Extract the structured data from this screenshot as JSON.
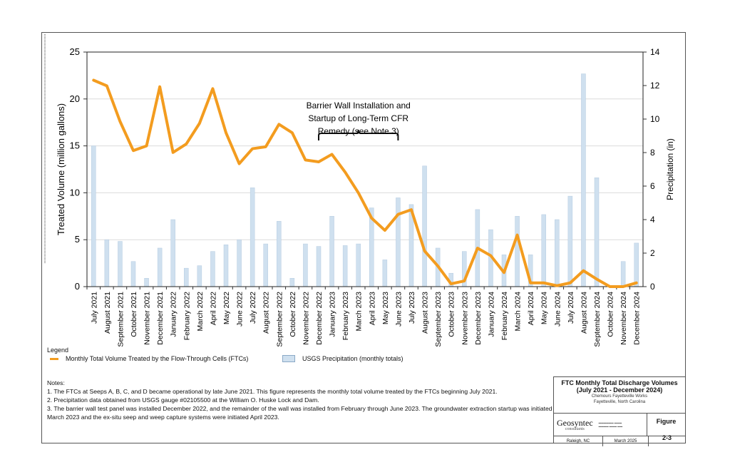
{
  "chart_data": {
    "type": "bar+line",
    "categories": [
      "July 2021",
      "August 2021",
      "September 2021",
      "October 2021",
      "November 2021",
      "December 2021",
      "January 2022",
      "February 2022",
      "March 2022",
      "April 2022",
      "May 2022",
      "June 2022",
      "July 2022",
      "August 2022",
      "September 2022",
      "October 2022",
      "November 2022",
      "December 2022",
      "January 2023",
      "February 2023",
      "March 2023",
      "April 2023",
      "May 2023",
      "June 2023",
      "July 2023",
      "August 2023",
      "September 2023",
      "October 2023",
      "November 2023",
      "December 2023",
      "January 2024",
      "February 2024",
      "March 2024",
      "April 2024",
      "May 2024",
      "June 2024",
      "July 2024",
      "August 2024",
      "September 2024",
      "October 2024",
      "November 2024",
      "December 2024"
    ],
    "series": [
      {
        "name": "Monthly Total Volume Treated by the Flow-Through Cells (FTCs)",
        "type": "line",
        "axis": "left",
        "color": "#f39c1f",
        "values": [
          22.0,
          21.4,
          17.6,
          14.5,
          15.0,
          21.3,
          14.3,
          15.2,
          17.4,
          21.1,
          16.4,
          13.1,
          14.7,
          14.9,
          17.3,
          16.4,
          13.5,
          13.3,
          14.1,
          12.2,
          10.0,
          7.3,
          6.0,
          7.7,
          8.2,
          3.8,
          2.2,
          0.3,
          0.6,
          4.1,
          3.3,
          1.5,
          5.5,
          0.4,
          0.4,
          0.1,
          0.4,
          1.7,
          0.8,
          0.0,
          0.0,
          0.4
        ]
      },
      {
        "name": "USGS Precipitation (monthly totals)",
        "type": "bar",
        "axis": "right",
        "color": "#cfe0ef",
        "values": [
          8.4,
          2.8,
          2.7,
          1.5,
          0.5,
          2.3,
          4.0,
          1.1,
          1.25,
          2.1,
          2.5,
          2.8,
          5.9,
          2.55,
          3.9,
          0.5,
          2.55,
          2.4,
          4.2,
          2.45,
          2.55,
          4.7,
          1.6,
          5.3,
          4.9,
          7.2,
          2.3,
          0.8,
          2.1,
          4.6,
          3.4,
          1.9,
          4.2,
          1.9,
          4.3,
          4.0,
          5.4,
          12.7,
          6.5,
          0.0,
          1.5,
          2.6
        ]
      }
    ],
    "ylabel": "Treated Volume (million gallons)",
    "ylim": [
      0,
      25
    ],
    "yticks": [
      "0",
      "5",
      "10",
      "15",
      "20",
      "25"
    ],
    "y2label": "Precipitation (in)",
    "y2lim": [
      0,
      14
    ],
    "y2ticks": [
      "0",
      "2",
      "4",
      "6",
      "8",
      "10",
      "12",
      "14"
    ],
    "grid": true,
    "annotation": {
      "lines": [
        "Barrier Wall Installation and",
        "Startup of Long-Term CFR",
        "Remedy (see Note 3)"
      ],
      "span": [
        "December 2022",
        "June 2023"
      ]
    }
  },
  "legend": {
    "title": "Legend",
    "line_label": "Monthly Total Volume Treated by the Flow-Through Cells (FTCs)",
    "bar_label": "USGS Precipitation (monthly totals)"
  },
  "notes": {
    "title": "Notes:",
    "items": [
      "1. The FTCs  at Seeps A, B, C, and D became operational by late June 2021. This figure represents the monthly total volume treated by the FTCs beginning July 2021.",
      "2. Precipitation data obtained from USGS gauge #02105500 at the William O. Huske Lock and Dam.",
      "3. The barrier wall test panel was installed December 2022, and the remainder of the wall was installed from February through June 2023. The groundwater extraction startup was initiated March 2023 and the ex-situ seep and weep capture systems were initiated April 2023."
    ]
  },
  "title_block": {
    "title1": "FTC Monthly Total Discharge Volumes",
    "title2": "(July 2021 - December 2024)",
    "site": "Chemours Fayetteville Works",
    "location": "Fayetteville, North Carolina",
    "logo": "Geosyntec",
    "logo_sub": "consultants",
    "figure_label": "Figure",
    "figure_number": "2-3",
    "office": "Raleigh, NC",
    "date": "March 2025"
  }
}
